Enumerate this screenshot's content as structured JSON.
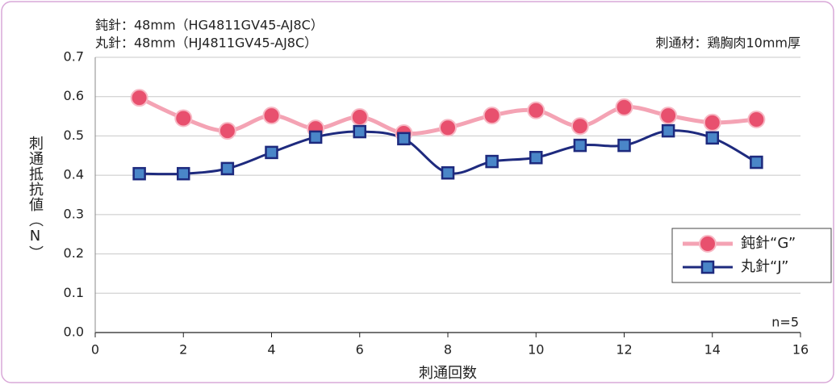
{
  "chart_data": {
    "type": "line",
    "annotations": [
      "鈍針：48mm（HG4811GV45-AJ8C）",
      "丸針：48mm（HJ4811GV45-AJ8C）",
      "刺通材：鶏胸肉10mm厚",
      "n=5"
    ],
    "ylabel": "刺通抵抗値（N）",
    "xlabel": "刺通回数",
    "x": [
      1,
      2,
      3,
      4,
      5,
      6,
      7,
      8,
      9,
      10,
      11,
      12,
      13,
      14,
      15
    ],
    "series": [
      {
        "name": "鈍針“G”",
        "color": "#e8506e",
        "marker": "circle",
        "values": [
          0.597,
          0.545,
          0.513,
          0.552,
          0.519,
          0.548,
          0.507,
          0.521,
          0.552,
          0.565,
          0.525,
          0.573,
          0.552,
          0.534,
          0.542
        ]
      },
      {
        "name": "丸針“J”",
        "color": "#1e2a7e",
        "marker": "square",
        "values": [
          0.404,
          0.404,
          0.417,
          0.458,
          0.497,
          0.511,
          0.493,
          0.406,
          0.435,
          0.445,
          0.476,
          0.476,
          0.513,
          0.495,
          0.433
        ]
      }
    ],
    "xlim": [
      0,
      16
    ],
    "xticks": [
      0,
      2,
      4,
      6,
      8,
      10,
      12,
      14,
      16
    ],
    "ylim": [
      0,
      0.7
    ],
    "yticks": [
      {
        "value": 0,
        "label": "0.0"
      },
      0.1,
      0.2,
      0.3,
      0.4,
      0.5,
      0.6,
      0.7
    ],
    "grid": true,
    "legend": "right"
  }
}
